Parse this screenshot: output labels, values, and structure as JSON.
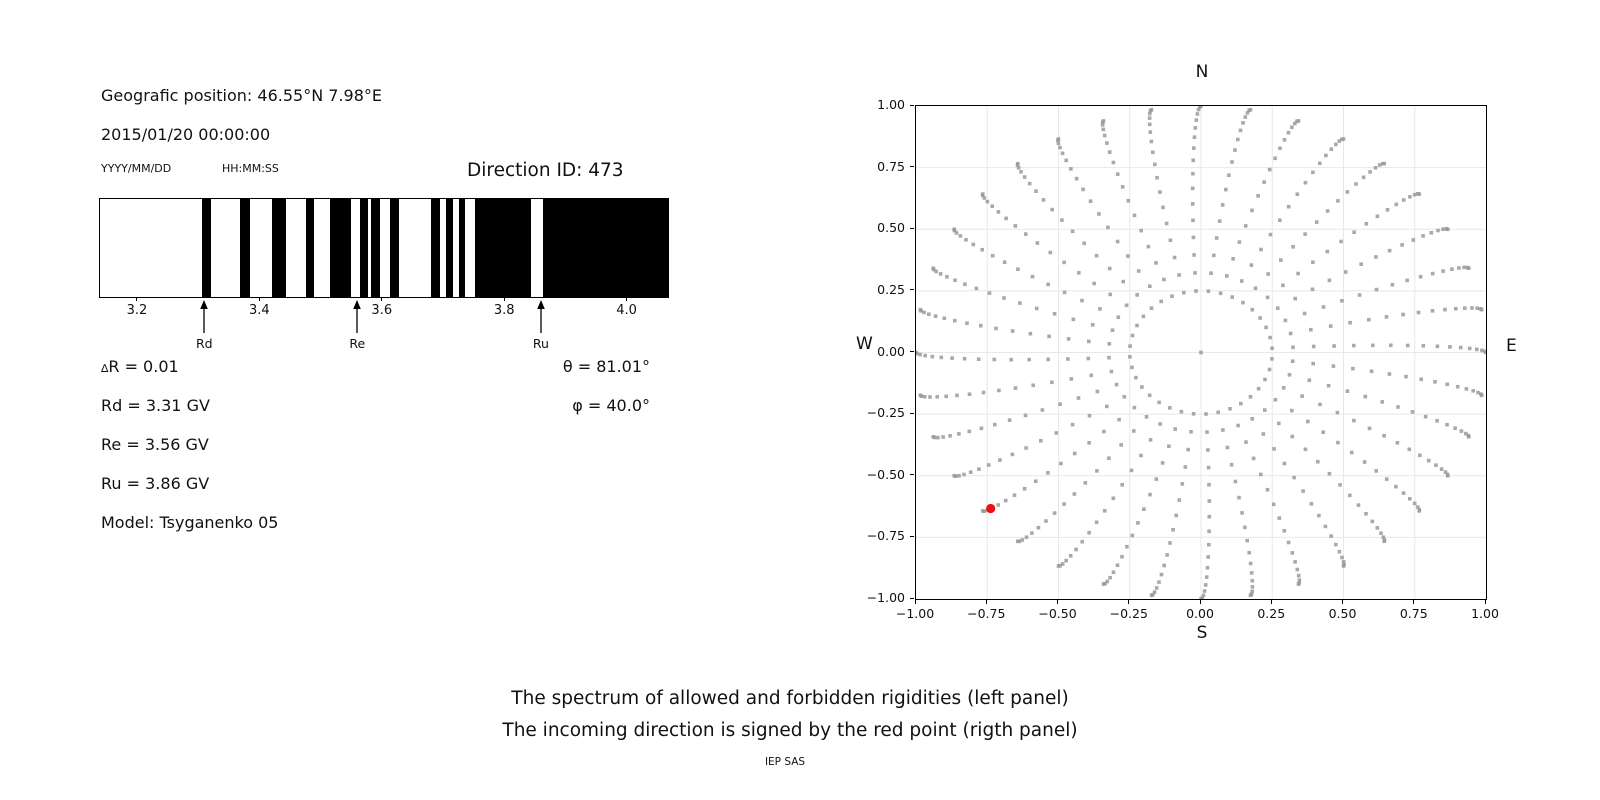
{
  "left_panel": {
    "geo_position": "Geografic position: 46.55°N 7.98°E",
    "datetime": "2015/01/20 00:00:00",
    "date_format_hint": "YYYY/MM/DD",
    "time_format_hint": "HH:MM:SS",
    "direction_id_label": "Direction ID: 473",
    "stats_left": [
      "∆R = 0.01",
      "Rd = 3.31 GV",
      "Re = 3.56 GV",
      "Ru = 3.86 GV",
      "Model: Tsyganenko 05"
    ],
    "stats_right": [
      "θ = 81.01°",
      "φ = 40.0°"
    ]
  },
  "caption": {
    "line1": "The spectrum of allowed and forbidden rigidities (left panel)",
    "line2": "The incoming direction is signed by the red point (rigth panel)",
    "credit": "IEP SAS"
  },
  "chart_data": [
    {
      "type": "bar",
      "name": "rigidity-spectrum",
      "description": "Barcode plot of allowed (white) and forbidden (black) rigidities",
      "xlim": [
        3.138,
        4.066
      ],
      "xtick_labels": [
        "3.2",
        "3.4",
        "3.6",
        "3.8",
        "4.0"
      ],
      "xtick_values": [
        3.2,
        3.4,
        3.6,
        3.8,
        4.0
      ],
      "delta_r": 0.01,
      "forbidden_intervals_gv": [
        [
          3.305,
          3.32
        ],
        [
          3.367,
          3.383
        ],
        [
          3.419,
          3.441
        ],
        [
          3.474,
          3.487
        ],
        [
          3.513,
          3.548
        ],
        [
          3.562,
          3.576
        ],
        [
          3.581,
          3.595
        ],
        [
          3.611,
          3.627
        ],
        [
          3.679,
          3.693
        ],
        [
          3.703,
          3.715
        ],
        [
          3.724,
          3.734
        ],
        [
          3.75,
          3.843
        ],
        [
          3.862,
          4.066
        ]
      ],
      "markers": [
        {
          "label": "Rd",
          "value_gv": 3.31
        },
        {
          "label": "Re",
          "value_gv": 3.56
        },
        {
          "label": "Ru",
          "value_gv": 3.86
        }
      ],
      "bar_color": "#000000"
    },
    {
      "type": "scatter",
      "name": "incoming-direction-map",
      "description": "Asymptotic direction map; incoming direction marked by red point",
      "xlim": [
        -1,
        1
      ],
      "ylim": [
        -1,
        1
      ],
      "xtick_labels": [
        "−1.00",
        "−0.75",
        "−0.50",
        "−0.25",
        "0.00",
        "0.25",
        "0.50",
        "0.75",
        "1.00"
      ],
      "xtick_values": [
        -1,
        -0.75,
        -0.5,
        -0.25,
        0,
        0.25,
        0.5,
        0.75,
        1
      ],
      "ytick_labels": [
        "1.00",
        "0.75",
        "0.50",
        "0.25",
        "0.00",
        "−0.25",
        "−0.50",
        "−0.75",
        "−1.00"
      ],
      "ytick_values": [
        1,
        0.75,
        0.5,
        0.25,
        0,
        -0.25,
        -0.5,
        -0.75,
        -1
      ],
      "compass": {
        "top": "N",
        "bottom": "S",
        "left": "W",
        "right": "E"
      },
      "grid": true,
      "grid_color": "#e8e8e8",
      "spokes": {
        "count": 36,
        "angle_step_deg": 10,
        "inner_radius": 0.25,
        "outer_radius": 1.0,
        "dots_per_spoke": 17,
        "radial_easing": "sin",
        "inner_angle_offset_deg": 4
      },
      "center_dot": [
        0,
        0
      ],
      "dot_color": "#969696",
      "red_point": {
        "x": -0.738,
        "y": -0.633
      },
      "red_color": "#ee1111"
    }
  ]
}
